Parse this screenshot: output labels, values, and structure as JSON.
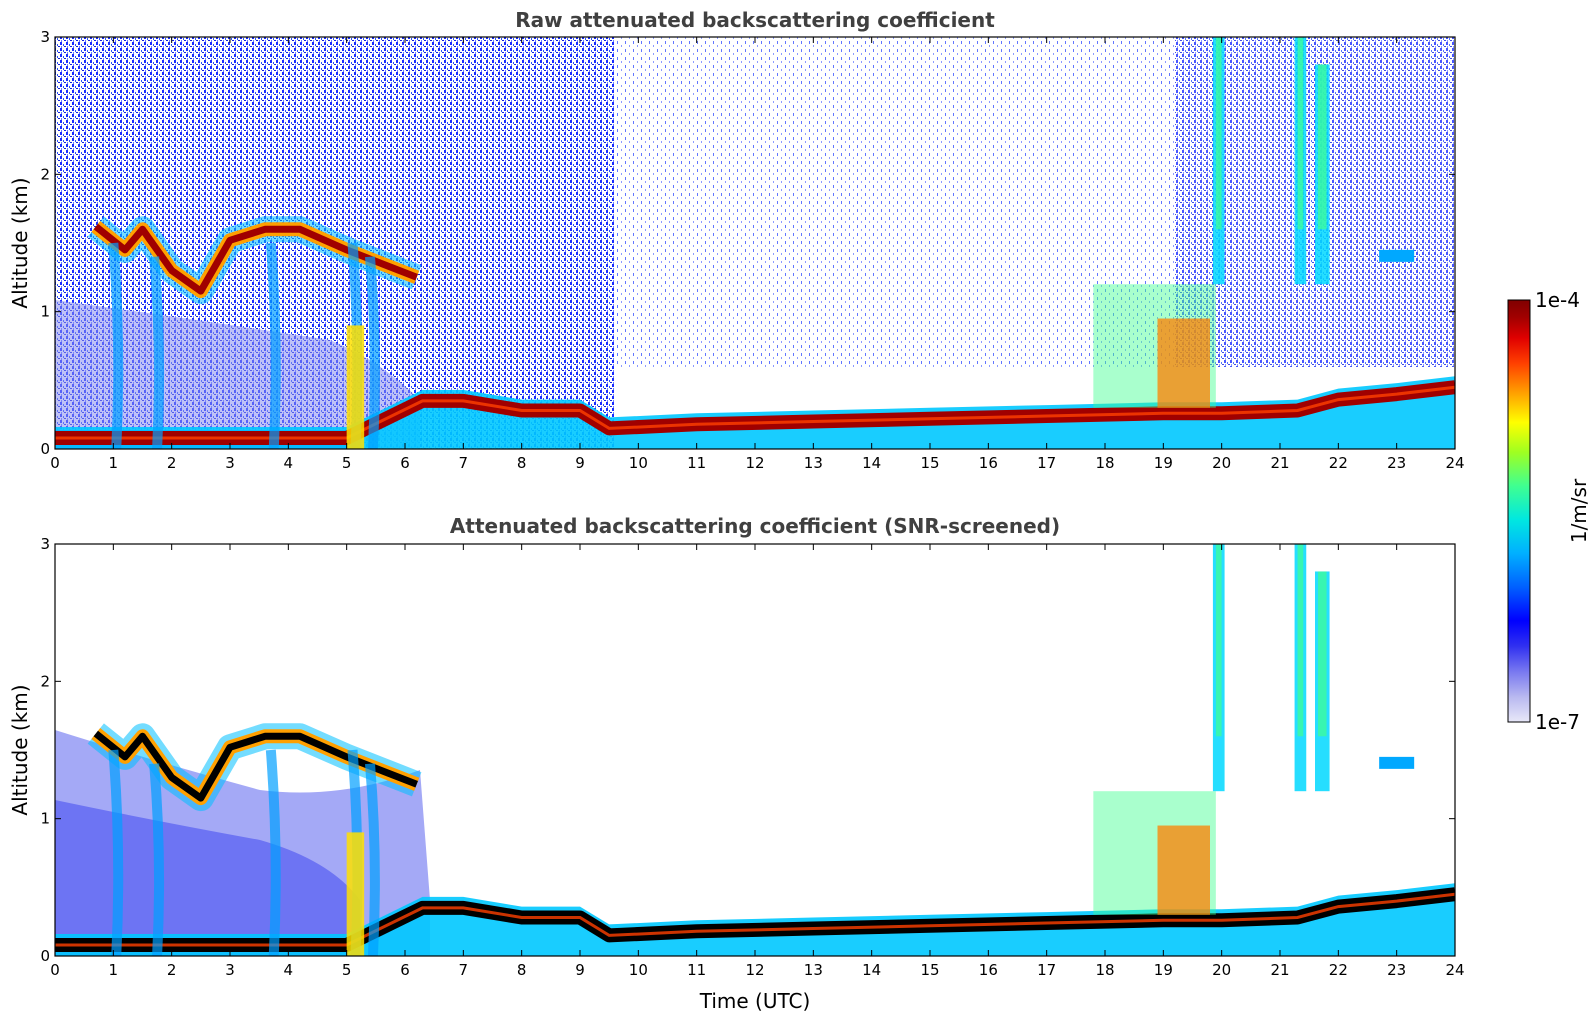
{
  "chart_data": [
    {
      "type": "heatmap",
      "title": "Raw attenuated backscattering coefficient",
      "xlabel": "",
      "ylabel": "Altitude (km)",
      "xlim": [
        0,
        24
      ],
      "ylim": [
        0,
        3
      ],
      "xticks": [
        "0",
        "1",
        "2",
        "3",
        "4",
        "5",
        "6",
        "7",
        "8",
        "9",
        "10",
        "11",
        "12",
        "13",
        "14",
        "15",
        "16",
        "17",
        "18",
        "19",
        "20",
        "21",
        "22",
        "23",
        "24"
      ],
      "yticks": [
        "0",
        "1",
        "2",
        "3"
      ],
      "features": {
        "boundary_layer_top_km": [
          {
            "t": 0.0,
            "z": 0.08
          },
          {
            "t": 5.0,
            "z": 0.08
          },
          {
            "t": 6.3,
            "z": 0.35
          },
          {
            "t": 7.0,
            "z": 0.35
          },
          {
            "t": 8.0,
            "z": 0.28
          },
          {
            "t": 9.0,
            "z": 0.28
          },
          {
            "t": 9.5,
            "z": 0.15
          },
          {
            "t": 11.0,
            "z": 0.18
          },
          {
            "t": 13.0,
            "z": 0.2
          },
          {
            "t": 15.0,
            "z": 0.22
          },
          {
            "t": 17.0,
            "z": 0.24
          },
          {
            "t": 19.0,
            "z": 0.26
          },
          {
            "t": 20.0,
            "z": 0.26
          },
          {
            "t": 21.3,
            "z": 0.28
          },
          {
            "t": 22.0,
            "z": 0.36
          },
          {
            "t": 23.0,
            "z": 0.4
          },
          {
            "t": 24.0,
            "z": 0.45
          }
        ],
        "cloud_layer_km": [
          {
            "t": 0.7,
            "z": 1.62
          },
          {
            "t": 1.2,
            "z": 1.45
          },
          {
            "t": 1.5,
            "z": 1.6
          },
          {
            "t": 2.0,
            "z": 1.3
          },
          {
            "t": 2.5,
            "z": 1.15
          },
          {
            "t": 3.0,
            "z": 1.52
          },
          {
            "t": 3.6,
            "z": 1.6
          },
          {
            "t": 4.2,
            "z": 1.6
          },
          {
            "t": 5.0,
            "z": 1.45
          },
          {
            "t": 5.6,
            "z": 1.35
          },
          {
            "t": 6.2,
            "z": 1.25
          }
        ]
      }
    },
    {
      "type": "heatmap",
      "title": "Attenuated backscattering coefficient (SNR-screened)",
      "xlabel": "Time (UTC)",
      "ylabel": "Altitude (km)",
      "xlim": [
        0,
        24
      ],
      "ylim": [
        0,
        3
      ],
      "xticks": [
        "0",
        "1",
        "2",
        "3",
        "4",
        "5",
        "6",
        "7",
        "8",
        "9",
        "10",
        "11",
        "12",
        "13",
        "14",
        "15",
        "16",
        "17",
        "18",
        "19",
        "20",
        "21",
        "22",
        "23",
        "24"
      ],
      "yticks": [
        "0",
        "1",
        "2",
        "3"
      ]
    }
  ],
  "colorbar": {
    "label": "1/m/sr",
    "max_label": "1e-4",
    "min_label": "1e-7",
    "scale": "log",
    "colors": [
      "#e8e8f8",
      "#b8b8f0",
      "#7878f0",
      "#3030f0",
      "#0000ff",
      "#0060ff",
      "#00b0ff",
      "#00e8e0",
      "#40ff90",
      "#a0ff20",
      "#ffff00",
      "#ffa000",
      "#ff4000",
      "#e00000",
      "#a00000",
      "#800000"
    ]
  }
}
